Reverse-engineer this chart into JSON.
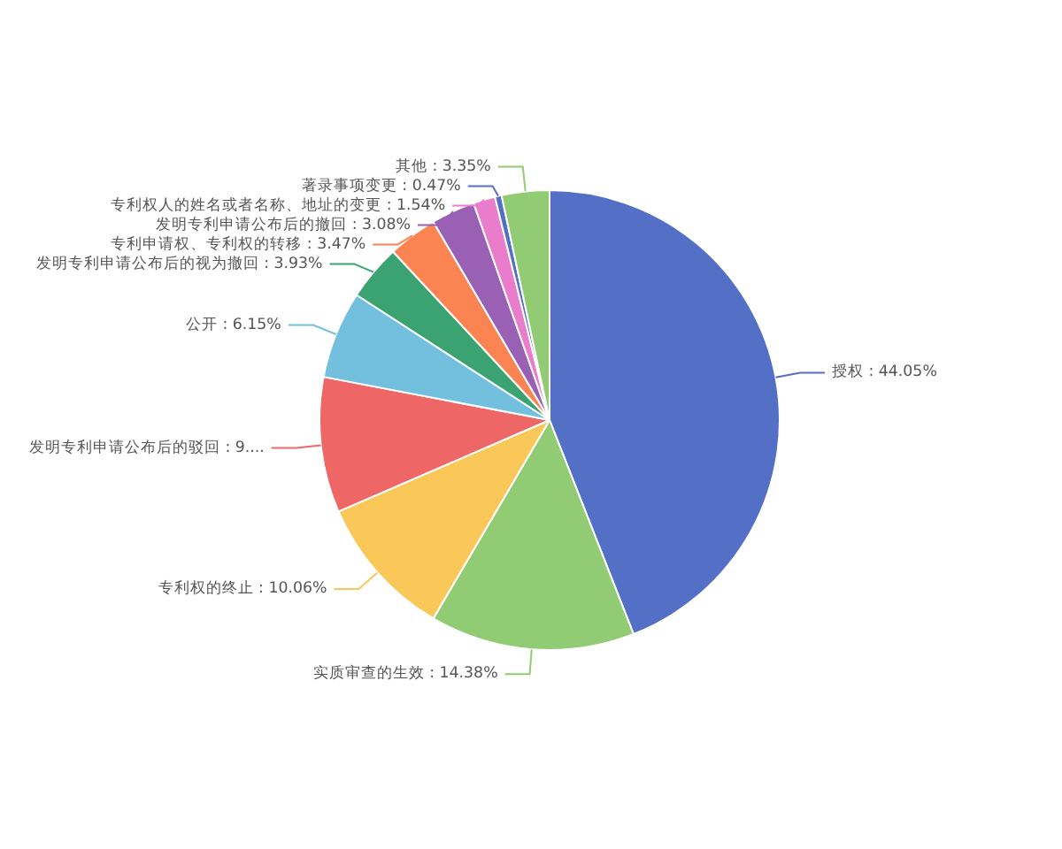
{
  "chart_data": {
    "type": "pie",
    "categories": [
      "授权",
      "实质审查的生效",
      "专利权的终止",
      "发明专利申请公布后的驳回",
      "公开",
      "发明专利申请公布后的视为撤回",
      "专利申请权、专利权的转移",
      "发明专利申请公布后的撤回",
      "专利权人的姓名或者名称、地址的变更",
      "著录事项变更",
      "其他"
    ],
    "values": [
      44.05,
      14.38,
      10.06,
      9.52,
      6.15,
      3.93,
      3.47,
      3.08,
      1.54,
      0.47,
      3.35
    ],
    "colors": [
      "#5470c6",
      "#91cc75",
      "#fac858",
      "#ee6666",
      "#73c0de",
      "#3ba272",
      "#fc8452",
      "#9a60b4",
      "#ea7ccc",
      "#5470c6",
      "#91cc75"
    ],
    "value_labels": [
      "44.05%",
      "14.38%",
      "10.06%",
      "9....",
      "6.15%",
      "3.93%",
      "3.47%",
      "3.08%",
      "1.54%",
      "0.47%",
      "3.35%"
    ]
  }
}
